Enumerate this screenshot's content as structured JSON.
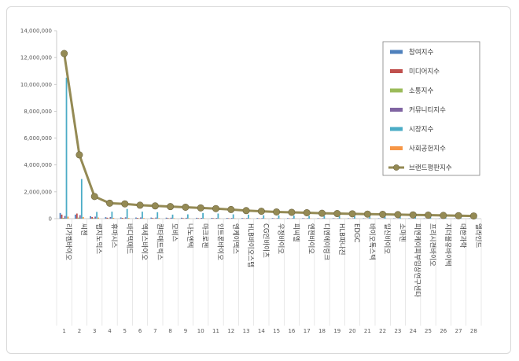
{
  "chart_data": {
    "type": "bar",
    "categories": [
      "1",
      "2",
      "3",
      "4",
      "5",
      "6",
      "7",
      "8",
      "9",
      "10",
      "11",
      "12",
      "13",
      "14",
      "15",
      "16",
      "17",
      "18",
      "19",
      "20",
      "21",
      "22",
      "23",
      "24",
      "25",
      "26",
      "27",
      "28"
    ],
    "category_names": [
      "리가켐바이오",
      "씨젠",
      "랩지노믹스",
      "휴마시스",
      "바디텍메드",
      "엑세스바이오",
      "퀀타매트릭스",
      "모비스",
      "나노엔텍",
      "마크로젠",
      "인트론바이오",
      "엔케이맥스",
      "HLB바이오스텝",
      "CG인바이츠",
      "우정바이오",
      "피씨엘",
      "엔젠바이오",
      "디엔에이링크",
      "HLB파나진",
      "EDGC",
      "바이오톡스텍",
      "일신바이오",
      "소마젠",
      "피엔케이피부임상연구센타",
      "프리시젼바이오",
      "지더블유바이텍",
      "대한과학",
      "엘라인드"
    ],
    "ylim": [
      0,
      14000000
    ],
    "yticks": [
      "0",
      "2,000,000",
      "4,000,000",
      "6,000,000",
      "8,000,000",
      "10,000,000",
      "12,000,000",
      "14,000,000"
    ],
    "grid": false,
    "legend_position": "right",
    "series": [
      {
        "name": "참여지수",
        "color": "#4f81bd",
        "values": [
          420000,
          300000,
          180000,
          110000,
          90000,
          85000,
          80000,
          75000,
          70000,
          65000,
          60000,
          55000,
          50000,
          48000,
          45000,
          42000,
          40000,
          38000,
          36000,
          34000,
          32000,
          30000,
          28000,
          26000,
          24000,
          22000,
          20000,
          18000
        ]
      },
      {
        "name": "미디어지수",
        "color": "#c0504d",
        "values": [
          300000,
          380000,
          120000,
          70000,
          60000,
          55000,
          50000,
          45000,
          40000,
          38000,
          36000,
          34000,
          30000,
          28000,
          26000,
          24000,
          22000,
          20000,
          18000,
          16000,
          15000,
          14000,
          13000,
          12000,
          11000,
          10000,
          9000,
          8000
        ]
      },
      {
        "name": "소통지수",
        "color": "#9bbb59",
        "values": [
          60000,
          80000,
          40000,
          20000,
          18000,
          16000,
          15000,
          14000,
          13000,
          12000,
          11000,
          10000,
          9000,
          8500,
          8000,
          7500,
          7000,
          6500,
          6000,
          5500,
          5000,
          4800,
          4600,
          4400,
          4200,
          4000,
          3800,
          3600
        ]
      },
      {
        "name": "커뮤니티지수",
        "color": "#8064a2",
        "values": [
          200000,
          260000,
          150000,
          120000,
          100000,
          90000,
          80000,
          70000,
          65000,
          60000,
          55000,
          50000,
          45000,
          40000,
          38000,
          36000,
          34000,
          32000,
          30000,
          28000,
          26000,
          24000,
          22000,
          20000,
          18000,
          16000,
          14000,
          12000
        ]
      },
      {
        "name": "시장지수",
        "color": "#4bacc6",
        "values": [
          10500000,
          2950000,
          500000,
          520000,
          720000,
          520000,
          480000,
          300000,
          320000,
          420000,
          380000,
          320000,
          300000,
          250000,
          240000,
          220000,
          200000,
          190000,
          180000,
          170000,
          160000,
          150000,
          140000,
          130000,
          120000,
          110000,
          100000,
          90000
        ]
      },
      {
        "name": "사회공헌지수",
        "color": "#f79646",
        "values": [
          150000,
          120000,
          80000,
          60000,
          50000,
          45000,
          40000,
          35000,
          30000,
          28000,
          26000,
          24000,
          22000,
          20000,
          18000,
          16000,
          15000,
          14000,
          13000,
          12000,
          11000,
          10000,
          9000,
          8000,
          7000,
          6000,
          5000,
          4000
        ]
      },
      {
        "name": "브랜드평판지수",
        "color": "#948a54",
        "type": "line",
        "values": [
          12300000,
          4750000,
          1650000,
          1150000,
          1100000,
          1000000,
          950000,
          900000,
          850000,
          800000,
          750000,
          680000,
          600000,
          550000,
          500000,
          470000,
          440000,
          400000,
          380000,
          360000,
          340000,
          320000,
          300000,
          280000,
          260000,
          240000,
          220000,
          200000
        ]
      }
    ]
  }
}
